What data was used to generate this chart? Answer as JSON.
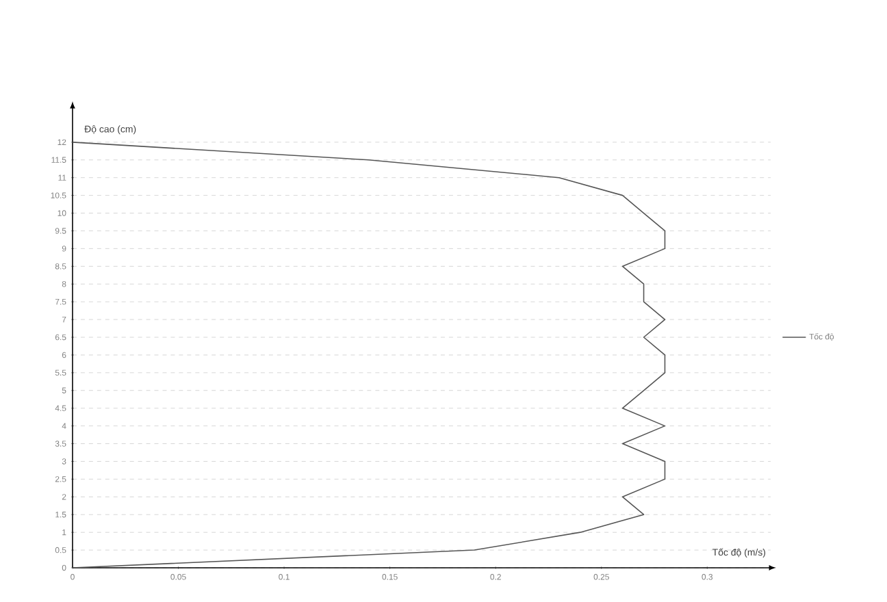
{
  "chart_data": {
    "type": "line",
    "xlabel": "Tốc độ (m/s)",
    "ylabel": "Độ cao (cm)",
    "x": [
      0,
      0.19,
      0.24,
      0.27,
      0.26,
      0.28,
      0.28,
      0.26,
      0.28,
      0.26,
      0.27,
      0.28,
      0.28,
      0.27,
      0.28,
      0.27,
      0.27,
      0.26,
      0.28,
      0.28,
      0.27,
      0.26,
      0.23,
      0.14,
      0
    ],
    "series": [
      {
        "name": "Tốc độ",
        "color": "#555555",
        "values": [
          0,
          0.5,
          1,
          1.5,
          2,
          2.5,
          3,
          3.5,
          4,
          4.5,
          5,
          5.5,
          6,
          6.5,
          7,
          7.5,
          8,
          8.5,
          9,
          9.5,
          10,
          10.5,
          11,
          11.5,
          12
        ]
      }
    ],
    "xlim": [
      0,
      0.33
    ],
    "ylim": [
      0,
      13
    ],
    "xticks": [
      0,
      0.05,
      0.1,
      0.15,
      0.2,
      0.25,
      0.3
    ],
    "yticks": [
      0,
      0.5,
      1,
      1.5,
      2,
      2.5,
      3,
      3.5,
      4,
      4.5,
      5,
      5.5,
      6,
      6.5,
      7,
      7.5,
      8,
      8.5,
      9,
      9.5,
      10,
      10.5,
      11,
      11.5,
      12
    ],
    "grid": "y",
    "legend": "right",
    "marker": "none",
    "line_style": "solid"
  }
}
